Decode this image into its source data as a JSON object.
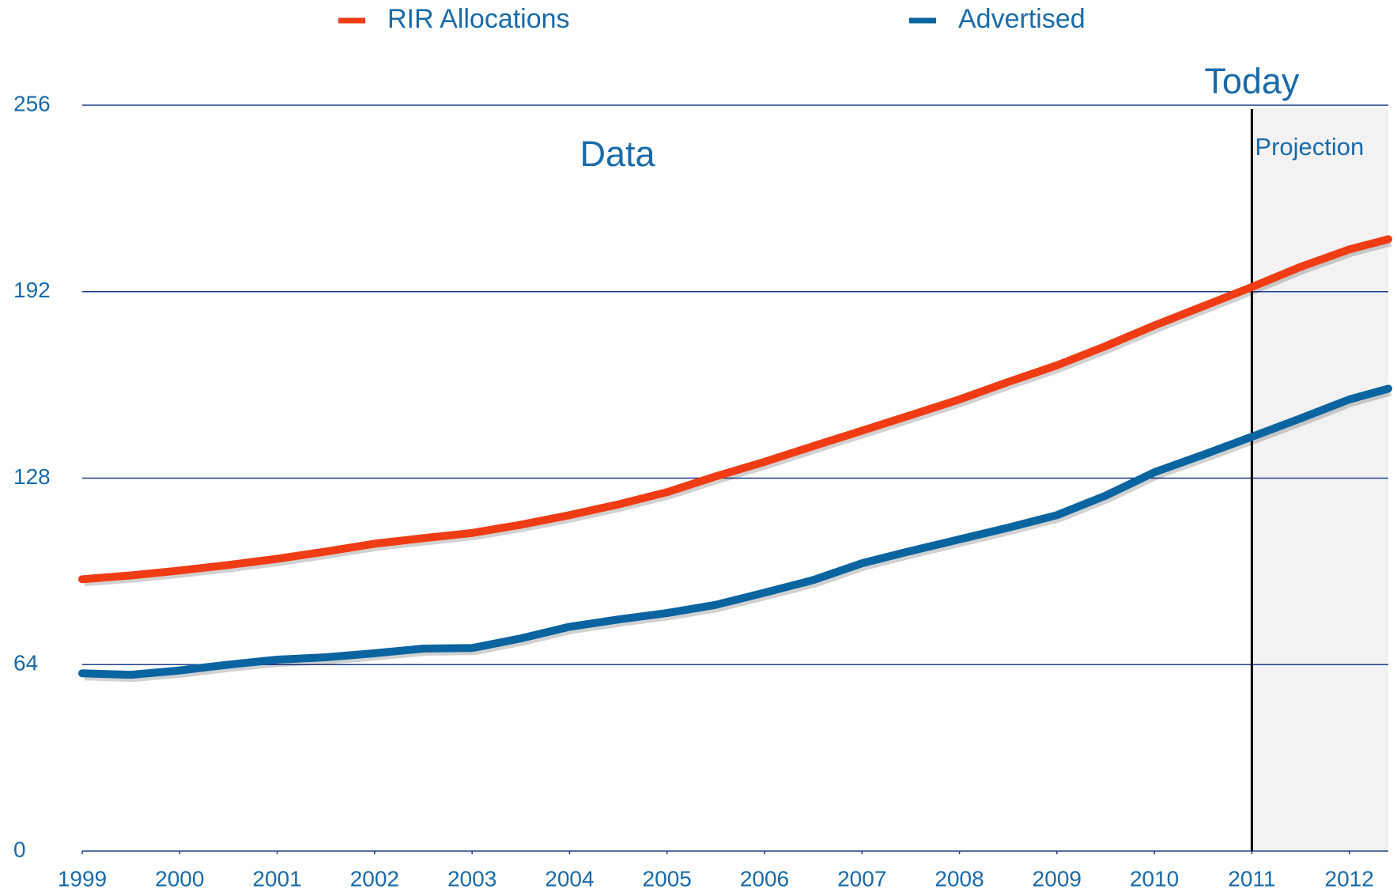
{
  "chart_data": {
    "type": "line",
    "x": [
      1999,
      1999.5,
      2000,
      2000.5,
      2001,
      2001.5,
      2002,
      2002.5,
      2003,
      2003.5,
      2004,
      2004.5,
      2005,
      2005.5,
      2006,
      2006.5,
      2007,
      2007.5,
      2008,
      2008.5,
      2009,
      2009.5,
      2010,
      2010.5,
      2011,
      2011.5,
      2012,
      2012.4
    ],
    "series": [
      {
        "name": "RIR Allocations",
        "color": "#f03c14",
        "values": [
          93.3,
          94.6,
          96.3,
          98.2,
          100.3,
          102.8,
          105.5,
          107.4,
          109.2,
          112,
          115.3,
          119,
          123.2,
          128.6,
          133.6,
          139,
          144.3,
          149.6,
          155,
          161,
          166.7,
          173.3,
          180.4,
          187,
          193.6,
          200.5,
          206.5,
          210
        ]
      },
      {
        "name": "Advertised",
        "color": "#0a64a0",
        "values": [
          61,
          60.5,
          62,
          64,
          65.7,
          66.5,
          67.9,
          69.5,
          69.7,
          73,
          77,
          79.5,
          81.7,
          84.5,
          88.7,
          93,
          98.8,
          103,
          107,
          111,
          115.3,
          122,
          130,
          136,
          142.2,
          148.5,
          155,
          158.7
        ]
      }
    ],
    "xlim": [
      1999,
      2012.4
    ],
    "xticks": [
      1999,
      2000,
      2001,
      2002,
      2003,
      2004,
      2005,
      2006,
      2007,
      2008,
      2009,
      2010,
      2011,
      2012
    ],
    "ylim": [
      0,
      256
    ],
    "yticks": [
      0,
      64,
      128,
      192,
      256
    ],
    "grid": true,
    "legend": "top",
    "annotations": [
      {
        "text": "Data"
      },
      {
        "text": "Today",
        "x": 2011
      },
      {
        "text": "Projection"
      }
    ]
  }
}
